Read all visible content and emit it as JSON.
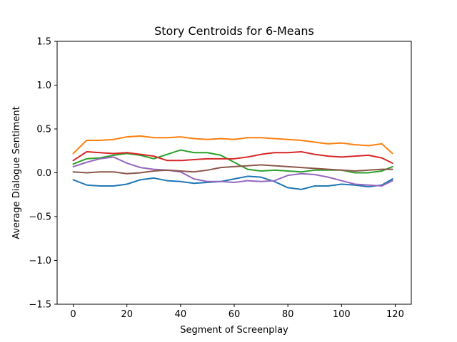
{
  "chart_data": {
    "type": "line",
    "title": "Story Centroids for 6-Means",
    "xlabel": "Segment of Screenplay",
    "ylabel": "Average Dialogue Sentiment",
    "xlim": [
      -6,
      126
    ],
    "ylim": [
      -1.5,
      1.5
    ],
    "xticks": [
      0,
      20,
      40,
      60,
      80,
      100,
      120
    ],
    "yticks": [
      -1.5,
      -1.0,
      -0.5,
      0.0,
      0.5,
      1.0,
      1.5
    ],
    "xtick_labels": [
      "0",
      "20",
      "40",
      "60",
      "80",
      "100",
      "120"
    ],
    "ytick_labels": [
      "−1.5",
      "−1.0",
      "−0.5",
      "0.0",
      "0.5",
      "1.0",
      "1.5"
    ],
    "grid": false,
    "x": [
      0,
      5,
      10,
      15,
      20,
      25,
      30,
      35,
      40,
      45,
      50,
      55,
      60,
      65,
      70,
      75,
      80,
      85,
      90,
      95,
      100,
      105,
      110,
      115,
      119
    ],
    "series": [
      {
        "color": "#1f77b4",
        "values": [
          -0.08,
          -0.14,
          -0.15,
          -0.15,
          -0.13,
          -0.08,
          -0.06,
          -0.09,
          -0.1,
          -0.12,
          -0.11,
          -0.1,
          -0.07,
          -0.04,
          -0.05,
          -0.1,
          -0.17,
          -0.19,
          -0.15,
          -0.15,
          -0.13,
          -0.14,
          -0.16,
          -0.14,
          -0.07
        ]
      },
      {
        "color": "#ff7f0e",
        "values": [
          0.22,
          0.37,
          0.37,
          0.38,
          0.41,
          0.42,
          0.4,
          0.4,
          0.41,
          0.39,
          0.38,
          0.39,
          0.38,
          0.4,
          0.4,
          0.39,
          0.38,
          0.37,
          0.35,
          0.33,
          0.34,
          0.32,
          0.31,
          0.33,
          0.22
        ]
      },
      {
        "color": "#2ca02c",
        "values": [
          0.1,
          0.16,
          0.17,
          0.2,
          0.22,
          0.2,
          0.16,
          0.21,
          0.26,
          0.23,
          0.23,
          0.2,
          0.12,
          0.04,
          0.02,
          0.03,
          0.02,
          0.01,
          0.03,
          0.03,
          0.03,
          0.0,
          0.0,
          0.02,
          0.07
        ]
      },
      {
        "color": "#d62728",
        "values": [
          0.14,
          0.24,
          0.23,
          0.22,
          0.23,
          0.21,
          0.19,
          0.14,
          0.14,
          0.15,
          0.16,
          0.16,
          0.16,
          0.18,
          0.21,
          0.23,
          0.23,
          0.24,
          0.21,
          0.19,
          0.18,
          0.19,
          0.2,
          0.17,
          0.11
        ]
      },
      {
        "color": "#9467bd",
        "values": [
          0.07,
          0.12,
          0.16,
          0.18,
          0.11,
          0.06,
          0.04,
          0.03,
          0.01,
          -0.07,
          -0.1,
          -0.1,
          -0.11,
          -0.09,
          -0.1,
          -0.09,
          -0.03,
          -0.01,
          -0.02,
          -0.05,
          -0.09,
          -0.13,
          -0.14,
          -0.15,
          -0.09
        ]
      },
      {
        "color": "#8c564b",
        "values": [
          0.01,
          0.0,
          0.01,
          0.01,
          -0.01,
          0.0,
          0.02,
          0.03,
          0.02,
          0.01,
          0.03,
          0.06,
          0.07,
          0.08,
          0.09,
          0.08,
          0.07,
          0.06,
          0.05,
          0.04,
          0.03,
          0.02,
          0.03,
          0.04,
          0.04
        ]
      }
    ]
  }
}
